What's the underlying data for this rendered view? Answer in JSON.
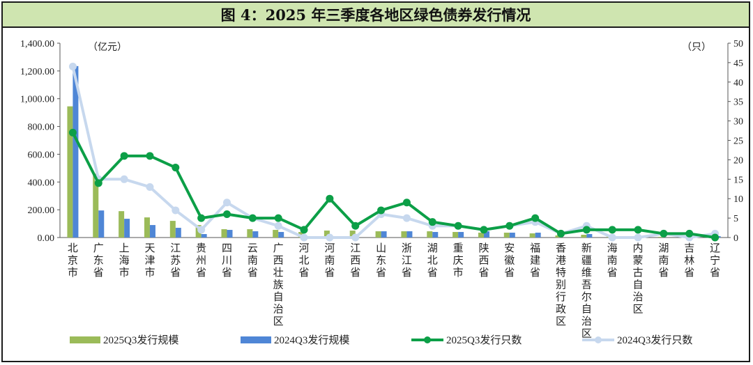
{
  "title": "图 4：2025 年三季度各地区绿色债券发行情况",
  "chart_data": {
    "type": "bar+line",
    "categories": [
      "北京市",
      "广东省",
      "上海市",
      "天津市",
      "江苏省",
      "贵州省",
      "四川省",
      "云南省",
      "广西壮族自治区",
      "河北省",
      "河南省",
      "江西省",
      "山东省",
      "浙江省",
      "湖北省",
      "重庆市",
      "陕西省",
      "安徽省",
      "福建省",
      "香港特别行政区",
      "新疆维吾尔自治区",
      "海南省",
      "内蒙古自治区",
      "湖南省",
      "吉林省",
      "辽宁省"
    ],
    "left_axis": {
      "unit": "（亿元）",
      "ylim": [
        0,
        1400
      ],
      "ticks": [
        "0.00",
        "200.00",
        "400.00",
        "600.00",
        "800.00",
        "1,000.00",
        "1,200.00",
        "1,400.00"
      ],
      "tick_values": [
        0,
        200,
        400,
        600,
        800,
        1000,
        1200,
        1400
      ]
    },
    "right_axis": {
      "unit": "（只）",
      "ylim": [
        0,
        50
      ],
      "ticks": [
        "0",
        "5",
        "10",
        "15",
        "20",
        "25",
        "30",
        "35",
        "40",
        "45",
        "50"
      ],
      "tick_values": [
        0,
        5,
        10,
        15,
        20,
        25,
        30,
        35,
        40,
        45,
        50
      ]
    },
    "bar_series": [
      {
        "name": "2025Q3发行规模",
        "color": "#9bbb59",
        "values": [
          945,
          460,
          190,
          145,
          120,
          90,
          60,
          60,
          55,
          40,
          50,
          50,
          45,
          45,
          45,
          40,
          35,
          35,
          30,
          15,
          20,
          10,
          10,
          5,
          5,
          3
        ]
      },
      {
        "name": "2024Q3发行规模",
        "color": "#4f86d6",
        "values": [
          1235,
          195,
          135,
          90,
          70,
          25,
          55,
          45,
          40,
          0,
          0,
          0,
          45,
          45,
          40,
          40,
          45,
          35,
          35,
          0,
          25,
          0,
          0,
          0,
          0,
          10
        ]
      }
    ],
    "line_series": [
      {
        "name": "2025Q3发行只数",
        "color": "#0c9f47",
        "values": [
          27,
          14,
          21,
          21,
          18,
          5,
          6,
          5,
          5,
          2,
          10,
          3,
          7,
          9,
          4,
          3,
          2,
          3,
          5,
          1,
          2,
          2,
          2,
          1,
          1,
          0
        ]
      },
      {
        "name": "2024Q3发行只数",
        "color": "#c7d8ee",
        "values": [
          44,
          15,
          15,
          13,
          7,
          2,
          9,
          5,
          3,
          0,
          0,
          0,
          6,
          5,
          3,
          3,
          2,
          3,
          4,
          1,
          3,
          0,
          0,
          1,
          0,
          1
        ]
      }
    ],
    "grid": false,
    "legend_position": "bottom"
  }
}
